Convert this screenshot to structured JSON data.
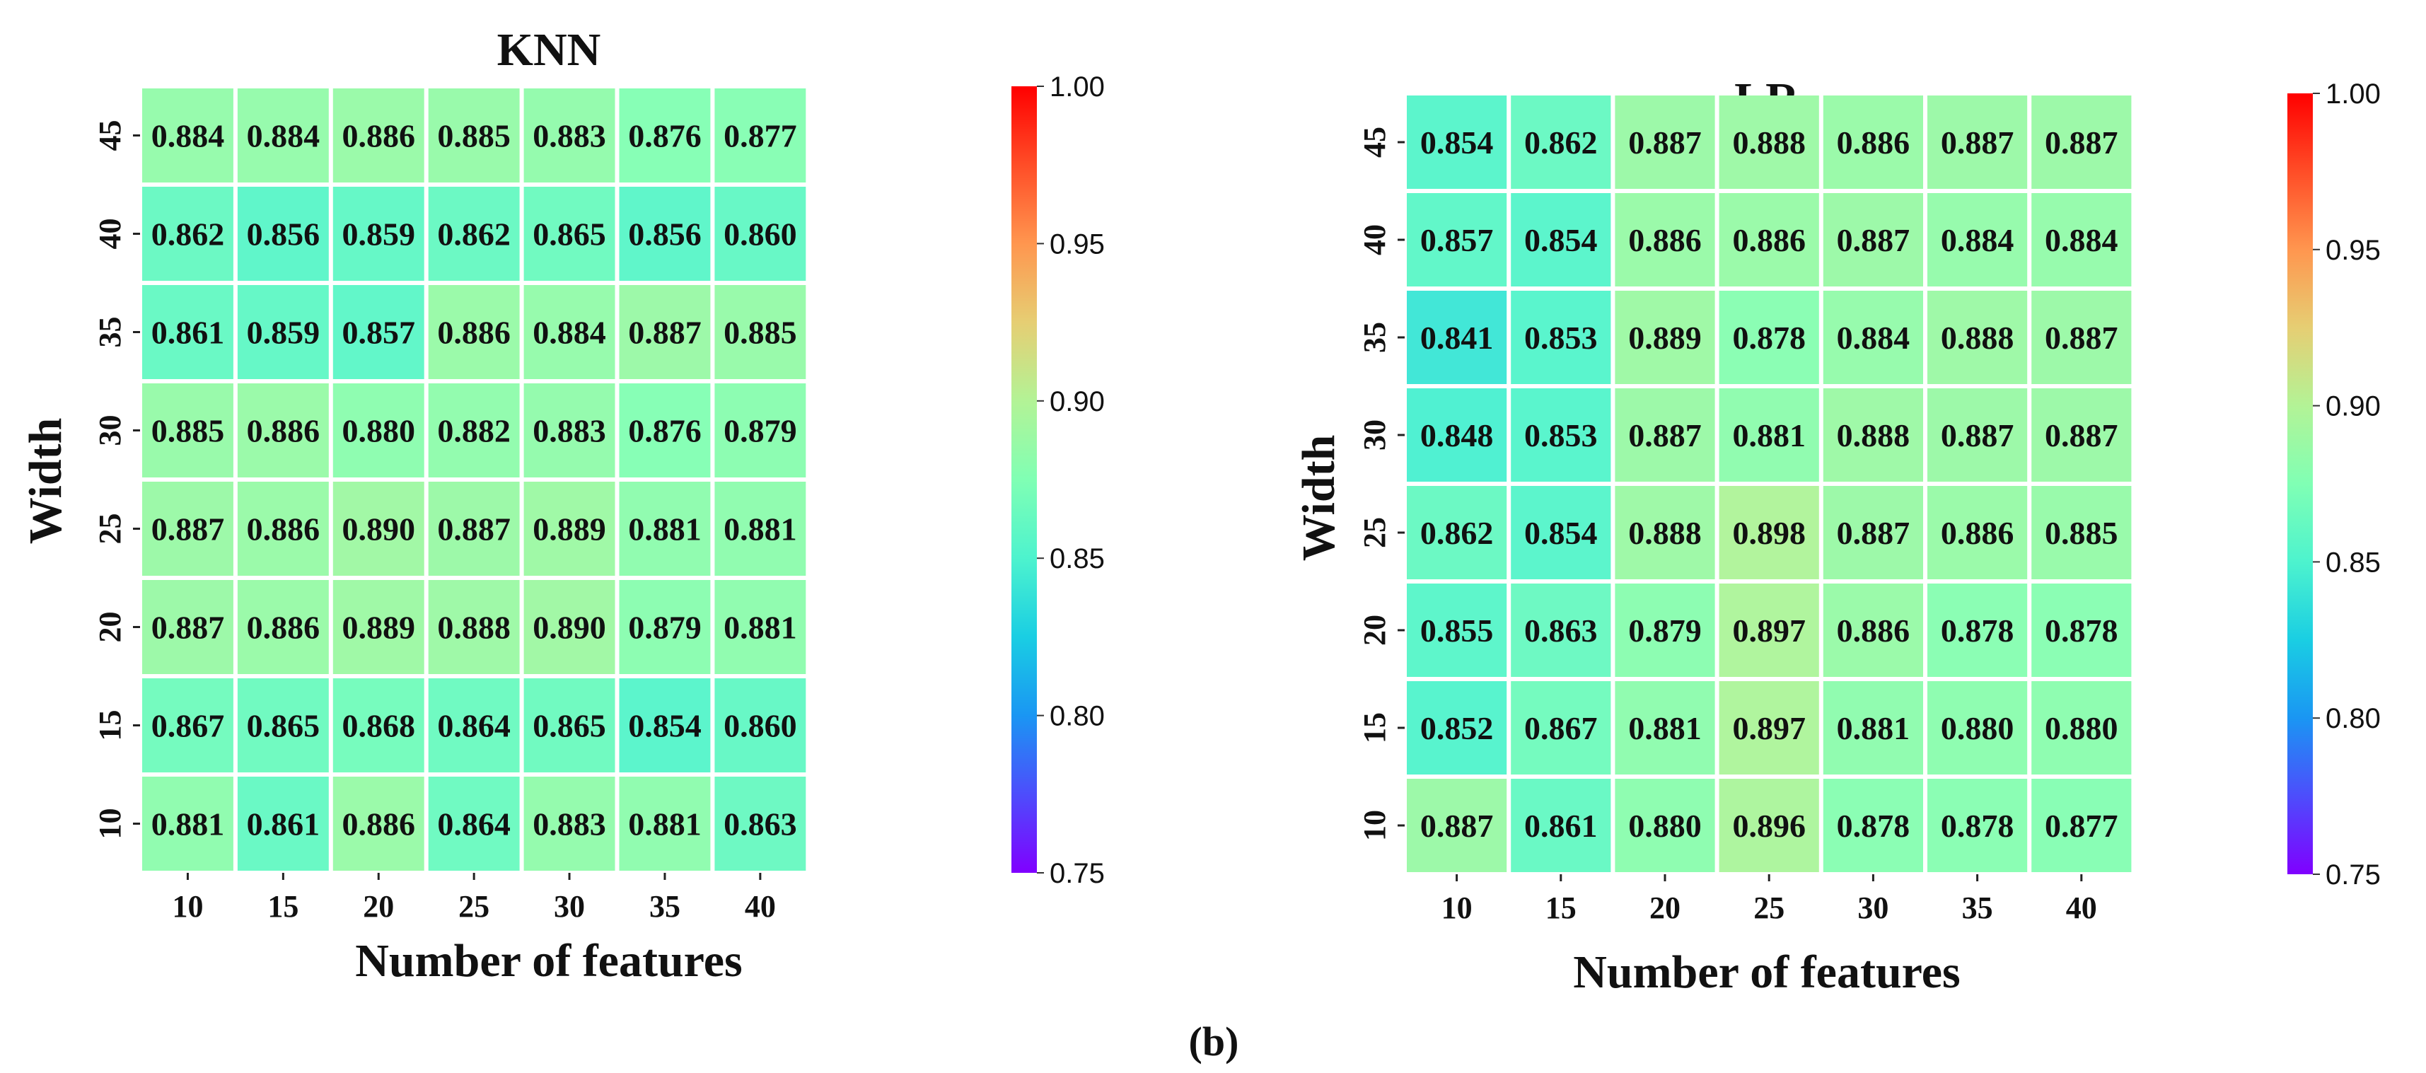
{
  "chart_data": [
    {
      "type": "heatmap",
      "title": "KNN",
      "xlabel": "Number of features",
      "ylabel": "Width",
      "x": [
        "10",
        "15",
        "20",
        "25",
        "30",
        "35",
        "40"
      ],
      "y": [
        "45",
        "40",
        "35",
        "30",
        "25",
        "20",
        "15",
        "10"
      ],
      "values": [
        [
          0.884,
          0.884,
          0.886,
          0.885,
          0.883,
          0.876,
          0.877
        ],
        [
          0.862,
          0.856,
          0.859,
          0.862,
          0.865,
          0.856,
          0.86
        ],
        [
          0.861,
          0.859,
          0.857,
          0.886,
          0.884,
          0.887,
          0.885
        ],
        [
          0.885,
          0.886,
          0.88,
          0.882,
          0.883,
          0.876,
          0.879
        ],
        [
          0.887,
          0.886,
          0.89,
          0.887,
          0.889,
          0.881,
          0.881
        ],
        [
          0.887,
          0.886,
          0.889,
          0.888,
          0.89,
          0.879,
          0.881
        ],
        [
          0.867,
          0.865,
          0.868,
          0.864,
          0.865,
          0.854,
          0.86
        ],
        [
          0.881,
          0.861,
          0.886,
          0.864,
          0.883,
          0.881,
          0.863
        ]
      ],
      "colorbar": {
        "range": [
          0.75,
          1.0
        ],
        "ticks": [
          "1.00",
          "0.95",
          "0.90",
          "0.85",
          "0.80",
          "0.75"
        ],
        "colormap": "rainbow"
      }
    },
    {
      "type": "heatmap",
      "title": "LR",
      "xlabel": "Number of features",
      "ylabel": "Width",
      "x": [
        "10",
        "15",
        "20",
        "25",
        "30",
        "35",
        "40"
      ],
      "y": [
        "45",
        "40",
        "35",
        "30",
        "25",
        "20",
        "15",
        "10"
      ],
      "values": [
        [
          0.854,
          0.862,
          0.887,
          0.888,
          0.886,
          0.887,
          0.887
        ],
        [
          0.857,
          0.854,
          0.886,
          0.886,
          0.887,
          0.884,
          0.884
        ],
        [
          0.841,
          0.853,
          0.889,
          0.878,
          0.884,
          0.888,
          0.887
        ],
        [
          0.848,
          0.853,
          0.887,
          0.881,
          0.888,
          0.887,
          0.887
        ],
        [
          0.862,
          0.854,
          0.888,
          0.898,
          0.887,
          0.886,
          0.885
        ],
        [
          0.855,
          0.863,
          0.879,
          0.897,
          0.886,
          0.878,
          0.878
        ],
        [
          0.852,
          0.867,
          0.881,
          0.897,
          0.881,
          0.88,
          0.88
        ],
        [
          0.887,
          0.861,
          0.88,
          0.896,
          0.878,
          0.878,
          0.877
        ]
      ],
      "colorbar": {
        "range": [
          0.75,
          1.0
        ],
        "ticks": [
          "1.00",
          "0.95",
          "0.90",
          "0.85",
          "0.80",
          "0.75"
        ],
        "colormap": "rainbow"
      }
    }
  ],
  "caption": "(b)"
}
